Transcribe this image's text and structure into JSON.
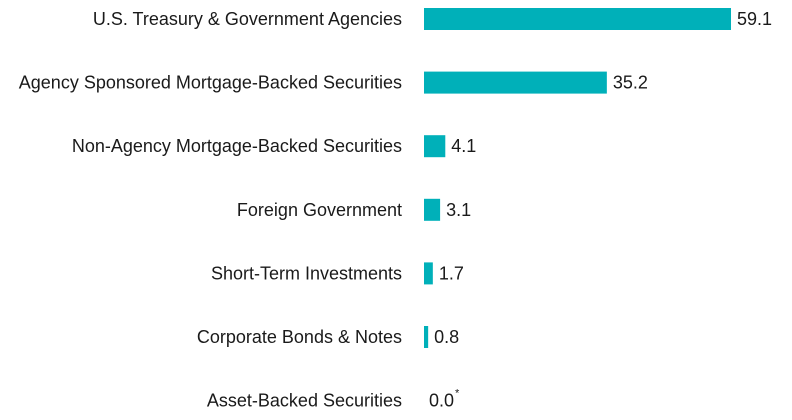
{
  "chart_data": {
    "type": "bar",
    "orientation": "horizontal",
    "categories": [
      "U.S. Treasury & Government Agencies",
      "Agency Sponsored Mortgage-Backed Securities",
      "Non-Agency Mortgage-Backed Securities",
      "Foreign Government",
      "Short-Term Investments",
      "Corporate Bonds & Notes",
      "Asset-Backed Securities"
    ],
    "values": [
      59.1,
      35.2,
      4.1,
      3.1,
      1.7,
      0.8,
      0.0
    ],
    "value_labels": [
      "59.1",
      "35.2",
      "4.1",
      "3.1",
      "1.7",
      "0.8",
      "0.0"
    ],
    "value_label_superscripts": [
      "",
      "",
      "",
      "",
      "",
      "",
      "*"
    ],
    "title": "",
    "xlabel": "",
    "ylabel": "",
    "grid": false,
    "legend": "none",
    "bar_color": "#00b0b9"
  }
}
